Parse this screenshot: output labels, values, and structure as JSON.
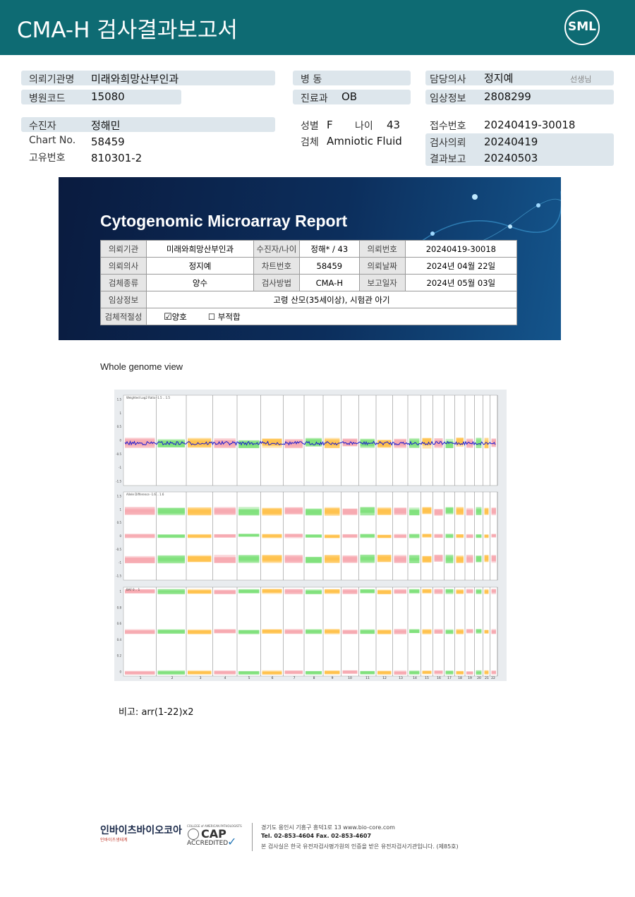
{
  "header": {
    "title": "CMA-H 검사결과보고서",
    "logo": "SML"
  },
  "info": {
    "client": {
      "label": "의뢰기관명",
      "value": "미래와희망산부인과"
    },
    "hospital_code": {
      "label": "병원코드",
      "value": "15080"
    },
    "patient": {
      "label": "수진자",
      "value": "정해민"
    },
    "chart_no": {
      "label": "Chart No.",
      "value": "58459"
    },
    "unique_no": {
      "label": "고유번호",
      "value": "810301-2"
    },
    "ward": {
      "label": "병 동"
    },
    "department": {
      "label": "진료과",
      "value": "OB"
    },
    "sex": {
      "label": "성별",
      "value": "F"
    },
    "age": {
      "label": "나이",
      "value": "43"
    },
    "specimen": {
      "label": "검체",
      "value": "Amniotic Fluid"
    },
    "doctor": {
      "label": "담당의사",
      "value": "정지예",
      "suffix": "선생님"
    },
    "clinical": {
      "label": "임상정보",
      "value": "2808299"
    },
    "receipt_no": {
      "label": "접수번호",
      "value": "20240419-30018"
    },
    "request_date": {
      "label": "검사의뢰",
      "value": "20240419"
    },
    "report_date": {
      "label": "결과보고",
      "value": "20240503"
    }
  },
  "report": {
    "title": "Cytogenomic Microarray Report",
    "rows": [
      [
        "의뢰기관",
        "미래와희망산부인과",
        "수진자/나이",
        "정해* / 43",
        "의뢰번호",
        "20240419-30018"
      ],
      [
        "의뢰의사",
        "정지예",
        "차트번호",
        "58459",
        "의뢰날짜",
        "2024년 04월 22일"
      ],
      [
        "검체종류",
        "양수",
        "검사방법",
        "CMA-H",
        "보고일자",
        "2024년 05월 03일"
      ]
    ],
    "clinical": {
      "label": "임상정보",
      "value": "고령 산모(35세이상), 시험관 아기"
    },
    "adequacy": {
      "label": "검체적절성",
      "good": "양호",
      "bad": "부적합"
    }
  },
  "genome": {
    "title": "Whole genome view",
    "panels": [
      {
        "label": "Weighted Log2 Ratio -1.5 .. 1.5",
        "yticks": [
          "1.5",
          "1",
          "0.5",
          "0",
          "-0.5",
          "-1",
          "-1.5"
        ]
      },
      {
        "label": "Allele Difference -1.6 .. 1.6",
        "yticks": [
          "1.5",
          "1",
          "0.5",
          "0",
          "-0.5",
          "-1",
          "-1.5"
        ]
      },
      {
        "label": "BAF 0 .. 1",
        "yticks": [
          "1",
          "0.8",
          "0.6",
          "0.4",
          "0.2",
          "0"
        ]
      }
    ],
    "chromosomes": [
      "1",
      "2",
      "3",
      "4",
      "5",
      "6",
      "7",
      "8",
      "9",
      "10",
      "11",
      "12",
      "13",
      "14",
      "15",
      "16",
      "17",
      "18",
      "19",
      "20",
      "21",
      "22"
    ]
  },
  "remark": {
    "label": "비고:",
    "value": "arr(1-22)x2"
  },
  "footer": {
    "company": "인바이츠바이오코아",
    "company_sub": "인바이츠생태계",
    "cap_top": "COLLEGE of AMERICAN PATHOLOGISTS",
    "cap": "CAP",
    "cap_accredited": "ACCREDITED",
    "address": "경기도 용인시 기흥구 흥덕1로 13  www.bio-core.com",
    "phone": "Tel. 02-853-4604   Fax. 02-853-4607",
    "notice": "본 검사실은 한국 유전자검사평가원의 인증을 받은 유전자검사기관입니다. (제85호)"
  }
}
